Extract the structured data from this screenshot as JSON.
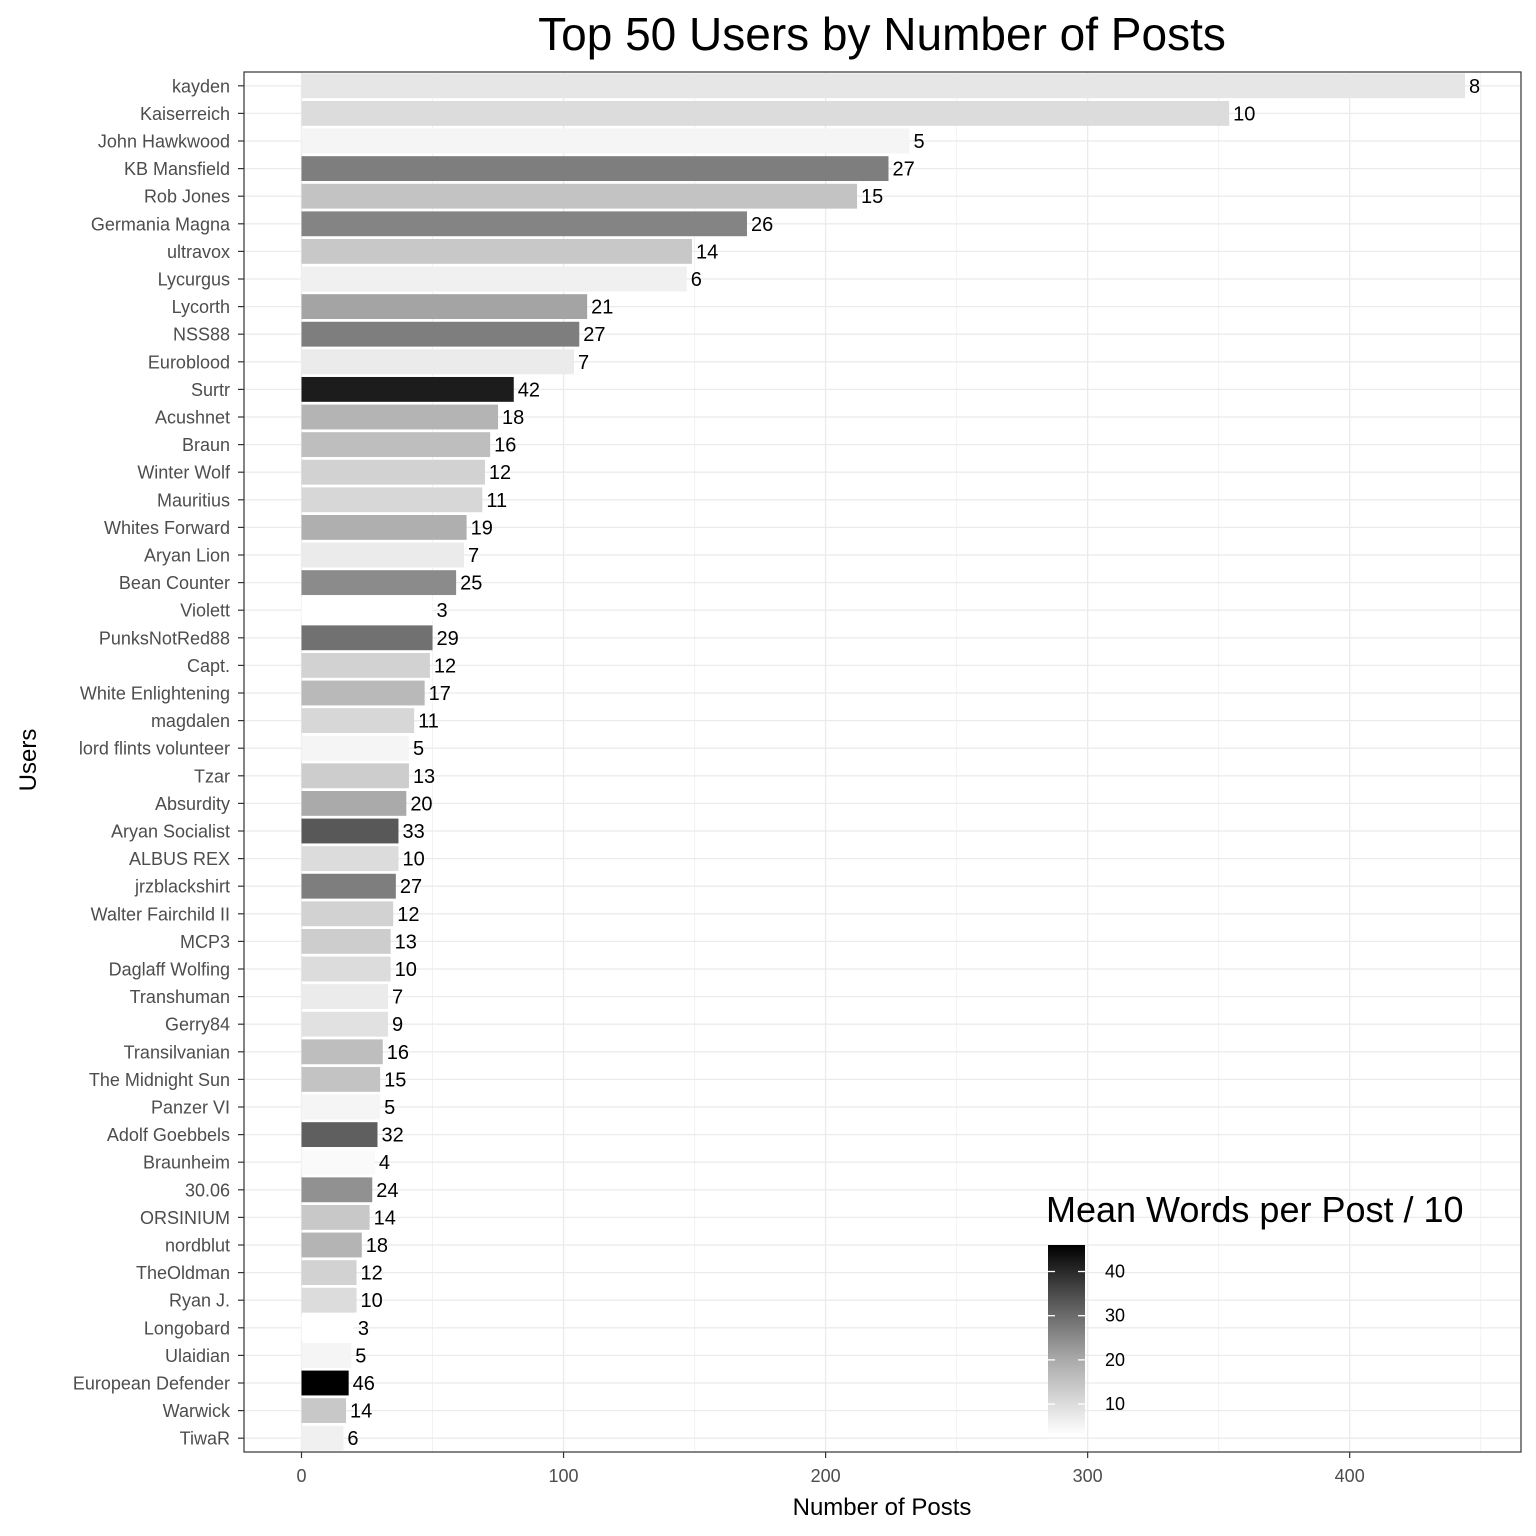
{
  "chart_data": {
    "type": "bar",
    "orientation": "horizontal",
    "title": "Top 50 Users by Number of Posts",
    "xlabel": "Number of Posts",
    "ylabel": "Users",
    "xlim": [
      -22,
      465
    ],
    "x_ticks": [
      0,
      100,
      200,
      300,
      400
    ],
    "grid": true,
    "legend_position": "bottom-right",
    "legend": {
      "title": "Mean Words per Post / 10",
      "range": [
        3,
        46
      ],
      "ticks": [
        10,
        20,
        30,
        40
      ],
      "low_color": "#ffffff",
      "high_color": "#000000"
    },
    "categories": [
      "kayden",
      "Kaiserreich",
      "John Hawkwood",
      "KB Mansfield",
      "Rob Jones",
      "Germania Magna",
      "ultravox",
      "Lycurgus",
      "Lycorth",
      "NSS88",
      "Euroblood",
      "Surtr",
      "Acushnet",
      "Braun",
      "Winter Wolf",
      "Mauritius",
      "Whites Forward",
      "Aryan Lion",
      "Bean Counter",
      "Violett",
      "PunksNotRed88",
      "Capt.",
      "White Enlightening",
      "magdalen",
      "lord flints volunteer",
      "Tzar",
      "Absurdity",
      "Aryan Socialist",
      "ALBUS REX",
      "jrzblackshirt",
      "Walter Fairchild II",
      "MCP3",
      "Daglaff Wolfing",
      "Transhuman",
      "Gerry84",
      "Transilvanian",
      "The Midnight Sun",
      "Panzer VI",
      "Adolf Goebbels",
      "Braunheim",
      "30.06",
      "ORSINIUM",
      "nordblut",
      "TheOldman",
      "Ryan J.",
      "Longobard",
      "Ulaidian",
      "European Defender",
      "Warwick",
      "TiwaR"
    ],
    "values": [
      444,
      354,
      232,
      224,
      212,
      170,
      149,
      147,
      109,
      106,
      104,
      81,
      75,
      72,
      70,
      69,
      63,
      62,
      59,
      50,
      50,
      49,
      47,
      43,
      41,
      41,
      40,
      37,
      37,
      36,
      35,
      34,
      34,
      33,
      33,
      31,
      30,
      30,
      29,
      28,
      27,
      26,
      23,
      21,
      21,
      20,
      19,
      18,
      17,
      16
    ],
    "mean_words": [
      8,
      10,
      5,
      27,
      15,
      26,
      14,
      6,
      21,
      27,
      7,
      42,
      18,
      16,
      12,
      11,
      19,
      7,
      25,
      3,
      29,
      12,
      17,
      11,
      5,
      13,
      20,
      33,
      10,
      27,
      12,
      13,
      10,
      7,
      9,
      16,
      15,
      5,
      32,
      4,
      24,
      14,
      18,
      12,
      10,
      3,
      5,
      46,
      14,
      6
    ]
  }
}
